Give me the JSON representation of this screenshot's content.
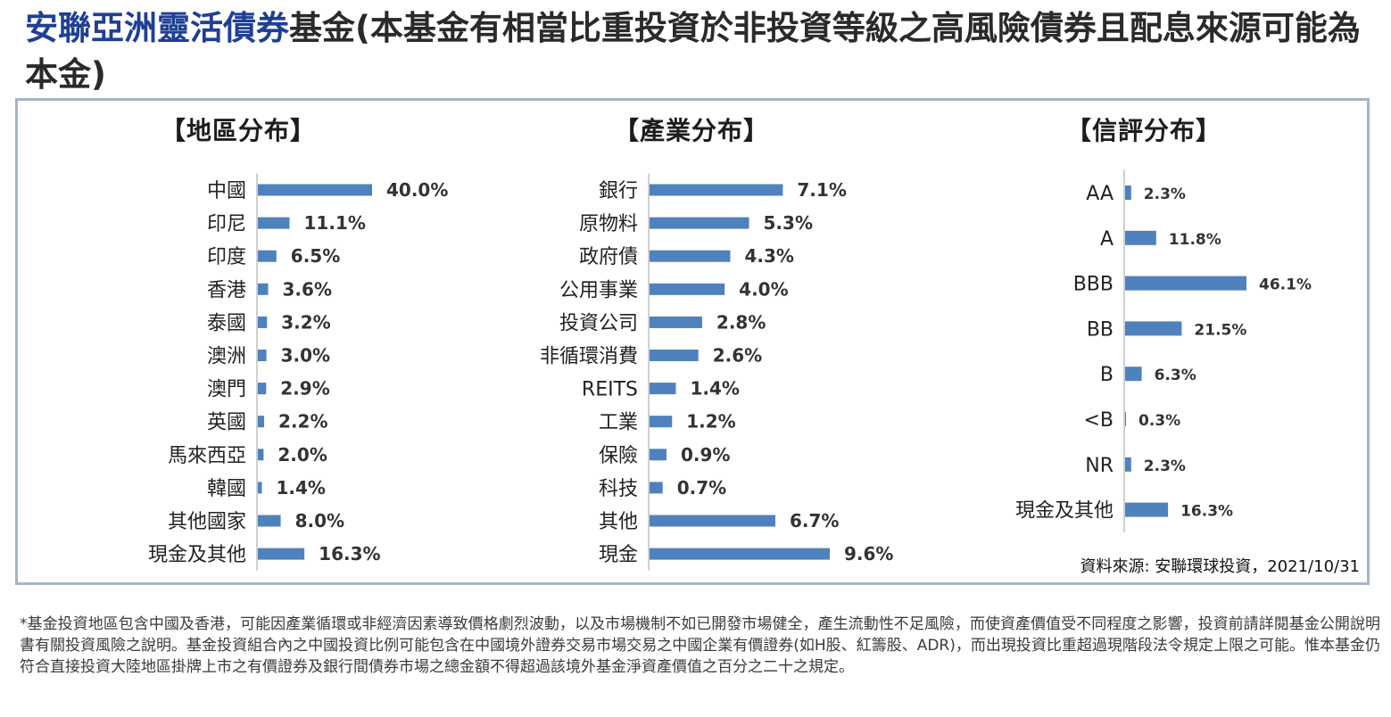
{
  "header": {
    "title_fund_name": "安聯亞洲靈活債券",
    "title_rest": "基金(本基金有相當比重投資於非投資等級之高風險債券且配息來源可能為本金)"
  },
  "colors": {
    "bar": "#4f81bd",
    "frame": "#a5b4c8",
    "fund_name": "#1f3f93"
  },
  "chart_data": [
    {
      "type": "bar",
      "orientation": "horizontal",
      "title": "【地區分布】",
      "categories": [
        "中國",
        "印尼",
        "印度",
        "香港",
        "泰國",
        "澳洲",
        "澳門",
        "英國",
        "馬來西亞",
        "韓國",
        "其他國家",
        "現金及其他"
      ],
      "values": [
        40.0,
        11.1,
        6.5,
        3.6,
        3.2,
        3.0,
        2.9,
        2.2,
        2.0,
        1.4,
        8.0,
        16.3
      ],
      "value_labels": [
        "40.0%",
        "11.1%",
        "6.5%",
        "3.6%",
        "3.2%",
        "3.0%",
        "2.9%",
        "2.2%",
        "2.0%",
        "1.4%",
        "8.0%",
        "16.3%"
      ],
      "unit": "%",
      "xlim": [
        0,
        40
      ]
    },
    {
      "type": "bar",
      "orientation": "horizontal",
      "title": "【產業分布】",
      "categories": [
        "銀行",
        "原物料",
        "政府債",
        "公用事業",
        "投資公司",
        "非循環消費",
        "REITS",
        "工業",
        "保險",
        "科技",
        "其他",
        "現金"
      ],
      "values": [
        7.1,
        5.3,
        4.3,
        4.0,
        2.8,
        2.6,
        1.4,
        1.2,
        0.9,
        0.7,
        6.7,
        9.6
      ],
      "value_labels": [
        "7.1%",
        "5.3%",
        "4.3%",
        "4.0%",
        "2.8%",
        "2.6%",
        "1.4%",
        "1.2%",
        "0.9%",
        "0.7%",
        "6.7%",
        "9.6%"
      ],
      "unit": "%",
      "xlim": [
        0,
        9.6
      ]
    },
    {
      "type": "bar",
      "orientation": "horizontal",
      "title": "【信評分布】",
      "categories": [
        "AA",
        "A",
        "BBB",
        "BB",
        "B",
        "<B",
        "NR",
        "現金及其他"
      ],
      "values": [
        2.3,
        11.8,
        46.1,
        21.5,
        6.3,
        0.3,
        2.3,
        16.3
      ],
      "value_labels": [
        "2.3%",
        "11.8%",
        "46.1%",
        "21.5%",
        "6.3%",
        "0.3%",
        "2.3%",
        "16.3%"
      ],
      "unit": "%",
      "xlim": [
        0,
        46.1
      ]
    }
  ],
  "source": "資料來源: 安聯環球投資，2021/10/31",
  "footnote": "*基金投資地區包含中國及香港，可能因產業循環或非經濟因素導致價格劇烈波動，以及市場機制不如已開發市場健全，產生流動性不足風險，而使資產價值受不同程度之影響，投資前請詳閱基金公開說明書有關投資風險之說明。基金投資組合內之中國投資比例可能包含在中國境外證券交易市場交易之中國企業有價證券(如H股、紅籌股、ADR)，而出現投資比重超過現階段法令規定上限之可能。惟本基金仍符合直接投資大陸地區掛牌上市之有價證券及銀行間債券市場之總金額不得超過該境外基金淨資產價值之百分之二十之規定。"
}
